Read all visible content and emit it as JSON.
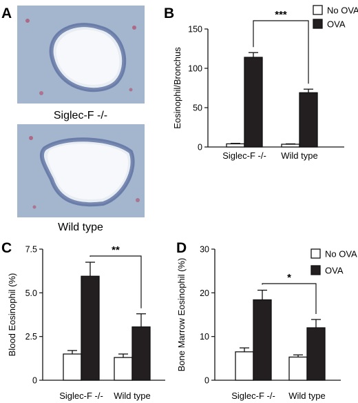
{
  "panels": {
    "A": {
      "letter": "A",
      "images": [
        {
          "caption": "Siglec-F -/-"
        },
        {
          "caption": "Wild type"
        }
      ]
    }
  },
  "chart_data": [
    {
      "panel": "B",
      "type": "bar",
      "categories": [
        "Siglec-F -/-",
        "Wild type"
      ],
      "ylabel": "Eosinophil/Bronchus",
      "ylim": [
        0,
        150
      ],
      "yticks": [
        "0",
        "50",
        "100",
        "150"
      ],
      "series": [
        {
          "name": "No OVA",
          "color": "#ffffff",
          "values": [
            4,
            3.5
          ],
          "errors": [
            0.6,
            0.5
          ]
        },
        {
          "name": "OVA",
          "color": "#231f20",
          "values": [
            114,
            69
          ],
          "errors": [
            6,
            4.5
          ]
        }
      ],
      "significance": "***",
      "legend": "top-right"
    },
    {
      "panel": "C",
      "type": "bar",
      "categories": [
        "Siglec-F -/-",
        "Wild type"
      ],
      "ylabel": "Blood Eosinophil (%)",
      "ylim": [
        0,
        7.5
      ],
      "yticks": [
        "0",
        "2.5",
        "5.0",
        "7.5"
      ],
      "series": [
        {
          "name": "No OVA",
          "color": "#ffffff",
          "values": [
            1.5,
            1.3
          ],
          "errors": [
            0.2,
            0.2
          ]
        },
        {
          "name": "OVA",
          "color": "#231f20",
          "values": [
            5.95,
            3.05
          ],
          "errors": [
            0.8,
            0.75
          ]
        }
      ],
      "significance": "**"
    },
    {
      "panel": "D",
      "type": "bar",
      "categories": [
        "Siglec-F -/-",
        "Wild type"
      ],
      "ylabel": "Bone Marrow Eosinophil (%)",
      "ylim": [
        0,
        30
      ],
      "yticks": [
        "0",
        "10",
        "20",
        "30"
      ],
      "series": [
        {
          "name": "No OVA",
          "color": "#ffffff",
          "values": [
            6.5,
            5.3
          ],
          "errors": [
            0.9,
            0.5
          ]
        },
        {
          "name": "OVA",
          "color": "#231f20",
          "values": [
            18.4,
            12
          ],
          "errors": [
            2.2,
            1.9
          ]
        }
      ],
      "significance": "*",
      "legend": "top-right"
    }
  ]
}
